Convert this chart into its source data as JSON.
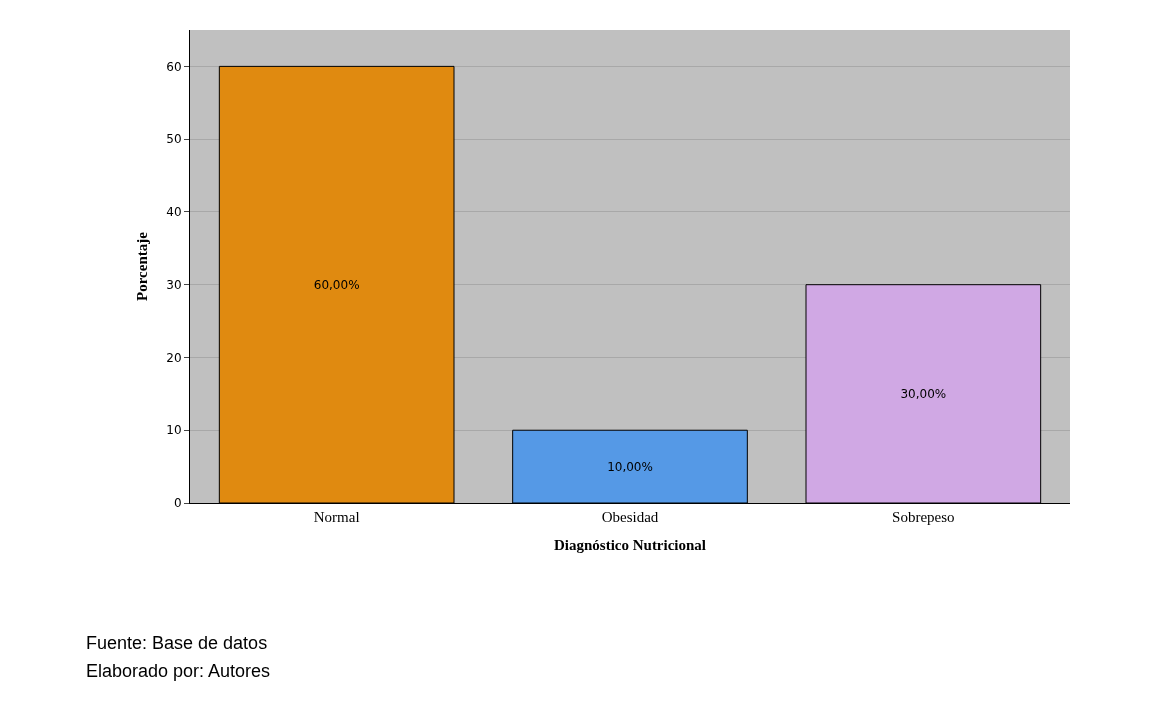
{
  "chart_data": {
    "type": "bar",
    "xlabel": "Diagnóstico Nutricional",
    "ylabel": "Porcentaje",
    "categories": [
      "Normal",
      "Obesidad",
      "Sobrepeso"
    ],
    "values": [
      60,
      10,
      30
    ],
    "colors": [
      "#e08a10",
      "#5599e6",
      "#d0a8e4"
    ],
    "value_labels": [
      "60,00%",
      "10,00%",
      "30,00%"
    ],
    "ylim": [
      0,
      65
    ],
    "yticks": [
      0,
      10,
      20,
      30,
      40,
      50,
      60
    ],
    "grid": "y",
    "annotations": [
      "Fuente: Base de datos",
      "Elaborado por: Autores"
    ]
  }
}
